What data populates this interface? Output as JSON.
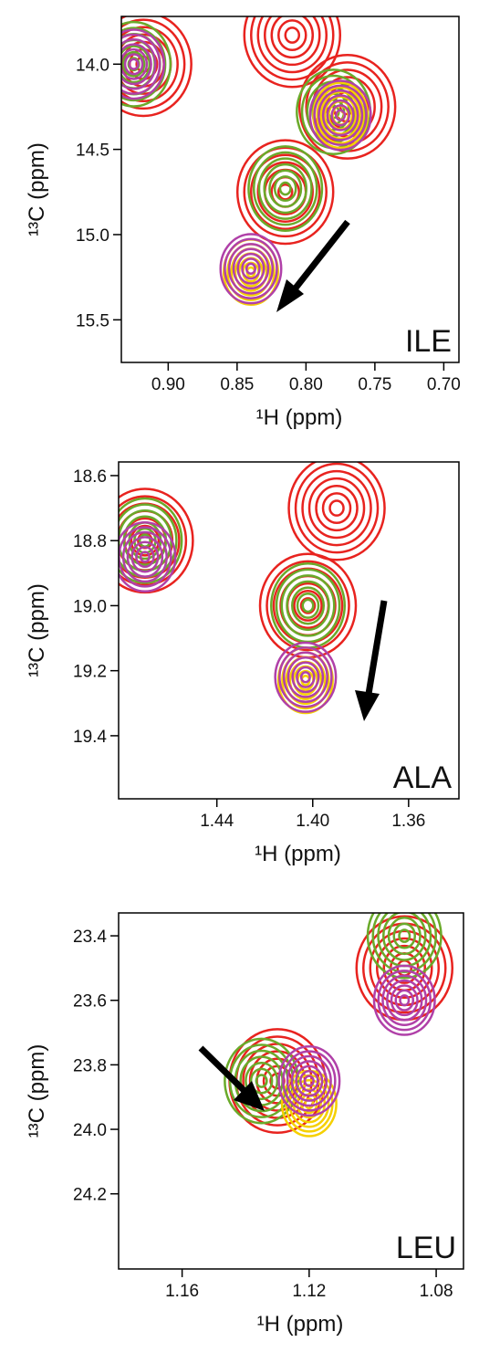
{
  "chart_data": [
    {
      "type": "contour",
      "label": "ILE",
      "x_label": "¹H (ppm)",
      "y_label": "¹³C (ppm)",
      "xlim": [
        0.934,
        0.689
      ],
      "ylim": [
        13.72,
        15.75
      ],
      "xticks": [
        {
          "value": 0.9,
          "label": "0.90"
        },
        0.85,
        {
          "value": 0.8,
          "label": "0.80"
        },
        0.75,
        {
          "value": 0.7,
          "label": "0.70"
        }
      ],
      "yticks": [
        {
          "value": 14,
          "label": "14.0"
        },
        14.5,
        {
          "value": 15,
          "label": "15.0"
        },
        15.5
      ],
      "series": [
        {
          "color": "#e8231f",
          "x": [
            0.918,
            0.81,
            0.77,
            0.815
          ],
          "y": [
            14.0,
            13.83,
            14.25,
            14.75
          ]
        },
        {
          "color": "#6aaa2a",
          "x": [
            0.925,
            0.78,
            0.815
          ],
          "y": [
            14.0,
            14.28,
            14.73
          ]
        },
        {
          "color": "#f5d000",
          "x": [
            0.775,
            0.84
          ],
          "y": [
            14.3,
            15.22
          ]
        },
        {
          "color": "#b040a8",
          "x": [
            0.925,
            0.775,
            0.84
          ],
          "y": [
            14.0,
            14.3,
            15.2
          ]
        }
      ]
    },
    {
      "type": "contour",
      "label": "ALA",
      "x_label": "¹H (ppm)",
      "y_label": "¹³C (ppm)",
      "xlim": [
        1.481,
        1.339
      ],
      "ylim": [
        18.558,
        19.594
      ],
      "xticks": [
        1.44,
        {
          "value": 1.4,
          "label": "1.40"
        },
        1.36
      ],
      "yticks": [
        18.6,
        18.8,
        {
          "value": 19,
          "label": "19.0"
        },
        19.2,
        19.4
      ],
      "series": [
        {
          "color": "#e8231f",
          "x": [
            1.402,
            1.47,
            1.39
          ],
          "y": [
            19.0,
            18.8,
            18.7
          ]
        },
        {
          "color": "#6aaa2a",
          "x": [
            1.402,
            1.47
          ],
          "y": [
            19.0,
            18.8
          ]
        },
        {
          "color": "#f5d000",
          "x": [
            1.403
          ],
          "y": [
            19.23
          ]
        },
        {
          "color": "#b040a8",
          "x": [
            1.403,
            1.47
          ],
          "y": [
            19.22,
            18.85
          ]
        }
      ]
    },
    {
      "type": "contour",
      "label": "LEU",
      "x_label": "¹H (ppm)",
      "y_label": "¹³C (ppm)",
      "xlim": [
        1.18,
        1.0714
      ],
      "ylim": [
        23.329,
        24.433
      ],
      "xticks": [
        1.16,
        1.12,
        1.08
      ],
      "yticks": [
        23.4,
        23.6,
        23.8,
        {
          "value": 24,
          "label": "24.0"
        },
        24.2
      ],
      "series": [
        {
          "color": "#e8231f",
          "x": [
            1.13,
            1.09
          ],
          "y": [
            23.85,
            23.5
          ]
        },
        {
          "color": "#6aaa2a",
          "x": [
            1.135,
            1.09
          ],
          "y": [
            23.85,
            23.4
          ]
        },
        {
          "color": "#f5d000",
          "x": [
            1.12
          ],
          "y": [
            23.92
          ]
        },
        {
          "color": "#b040a8",
          "x": [
            1.12,
            1.09
          ],
          "y": [
            23.85,
            23.6
          ]
        }
      ]
    }
  ]
}
